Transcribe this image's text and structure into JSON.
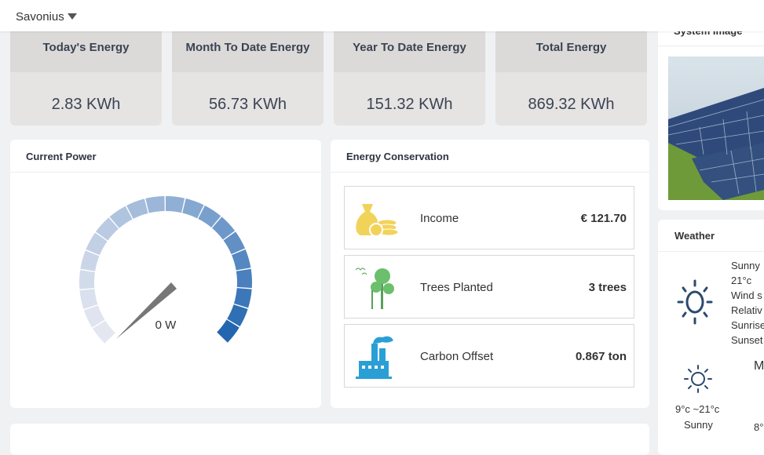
{
  "header": {
    "site": "Savonius"
  },
  "stats": [
    {
      "label": "Today's Energy",
      "value": "2.83 KWh"
    },
    {
      "label": "Month To Date Energy",
      "value": "56.73 KWh"
    },
    {
      "label": "Year To Date Energy",
      "value": "151.32 KWh"
    },
    {
      "label": "Total Energy",
      "value": "869.32 KWh"
    }
  ],
  "current_power": {
    "title": "Current Power",
    "reading": "0 W"
  },
  "energy_conservation": {
    "title": "Energy Conservation",
    "rows": [
      {
        "label": "Income",
        "value": "€ 121.70"
      },
      {
        "label": "Trees Planted",
        "value": "3 trees"
      },
      {
        "label": "Carbon Offset",
        "value": "0.867 ton"
      }
    ]
  },
  "system_image": {
    "title": "System Image"
  },
  "weather": {
    "title": "Weather",
    "current": [
      "Sunny",
      "21°c",
      "Wind s",
      "Relativ",
      "Sunrise",
      "Sunset"
    ],
    "forecast": [
      {
        "range": "9°c ~21°c",
        "condition": "Sunny"
      },
      {
        "label": "M",
        "range": "8°"
      }
    ]
  }
}
